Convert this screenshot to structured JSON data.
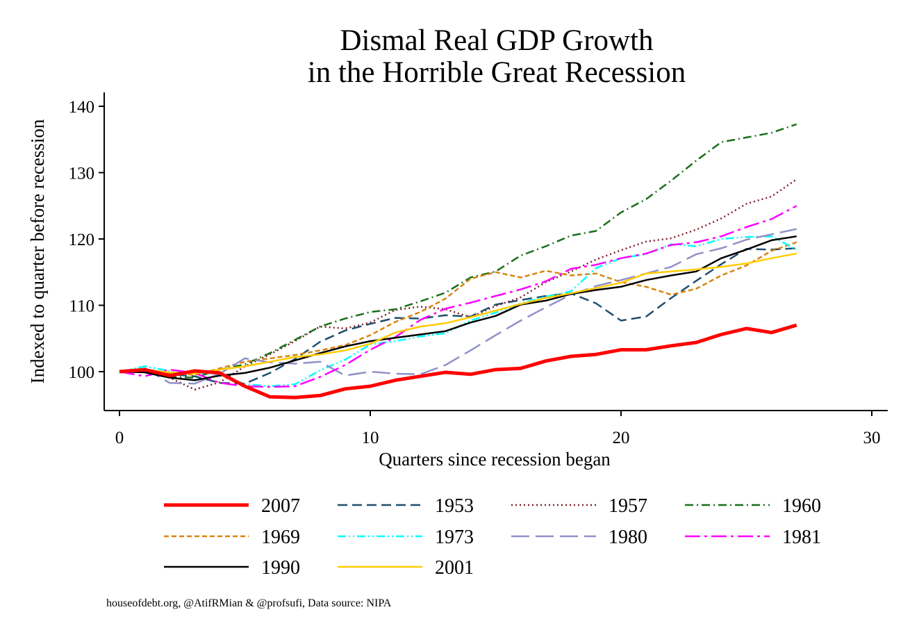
{
  "chart_data": {
    "type": "line",
    "title": "Dismal Real GDP Growth",
    "subtitle": "in the Horrible Great Recession",
    "xlabel": "Quarters since recession began",
    "ylabel": "Indexed to quarter before recession",
    "xlim": [
      0,
      30
    ],
    "ylim": [
      95,
      142
    ],
    "xticks": [
      0,
      10,
      20,
      30
    ],
    "yticks": [
      100,
      110,
      120,
      130,
      140
    ],
    "grid": false,
    "legend_placement": "bottom",
    "x": [
      0,
      1,
      2,
      3,
      4,
      5,
      6,
      7,
      8,
      9,
      10,
      11,
      12,
      13,
      14,
      15,
      16,
      17,
      18,
      19,
      20,
      21,
      22,
      23,
      24,
      25,
      26,
      27
    ],
    "series": [
      {
        "name": "2007",
        "color": "#ff0000",
        "dash": "solid",
        "width": 5,
        "values": [
          100,
          100.3,
          99.4,
          100.1,
          99.8,
          97.8,
          96.2,
          96.1,
          96.4,
          97.4,
          97.8,
          98.7,
          99.3,
          99.9,
          99.6,
          100.3,
          100.5,
          101.6,
          102.3,
          102.6,
          103.3,
          103.3,
          103.9,
          104.4,
          105.6,
          106.5,
          105.9,
          107
        ]
      },
      {
        "name": "1953",
        "color": "#1f4e6f",
        "dash": "14,7",
        "width": 2.5,
        "values": [
          100,
          100.4,
          99.6,
          99.3,
          98.3,
          98.2,
          99.8,
          101.9,
          104.5,
          106.2,
          107.2,
          108.1,
          108,
          108.5,
          108.3,
          110.1,
          110.8,
          111.4,
          111.8,
          110.3,
          107.7,
          108.3,
          111.1,
          113.7,
          116.2,
          118.5,
          118.4,
          118.6
        ]
      },
      {
        "name": "1957",
        "color": "#7a1f2b",
        "dash": "2,4",
        "width": 2.5,
        "values": [
          100,
          100.3,
          99.1,
          97.3,
          98.4,
          100.8,
          102.6,
          104.6,
          106.8,
          106.5,
          107.4,
          109.3,
          109.8,
          109.4,
          108.2,
          109.9,
          111.2,
          113.5,
          115.1,
          116.9,
          118.3,
          119.6,
          120.1,
          121.4,
          123.1,
          125.3,
          126.4,
          129
        ]
      },
      {
        "name": "1960",
        "color": "#196f19",
        "dash": "12,5,2,5",
        "width": 2.5,
        "values": [
          100,
          100.4,
          99.2,
          99.1,
          100.3,
          101.1,
          102.8,
          104.8,
          106.8,
          108,
          109,
          109.4,
          110.6,
          111.9,
          114.2,
          115.1,
          117.5,
          118.9,
          120.5,
          121.2,
          124,
          126,
          128.8,
          131.8,
          134.6,
          135.3,
          136,
          137.3
        ]
      },
      {
        "name": "1969",
        "color": "#d9830f",
        "dash": "7,4",
        "width": 2.5,
        "values": [
          100,
          100.3,
          99.8,
          99.5,
          100.5,
          101.5,
          102,
          102.5,
          103.2,
          104,
          105.5,
          107.5,
          109,
          111,
          114,
          115,
          114.2,
          115.2,
          114.5,
          114.8,
          113.5,
          112.8,
          111.6,
          112.5,
          114.5,
          116,
          118.2,
          119.5
        ]
      },
      {
        "name": "1973",
        "color": "#00ffff",
        "dash": "12,4,2,4,2,4",
        "width": 2.5,
        "values": [
          100,
          100.8,
          100.1,
          99.9,
          99.6,
          98.1,
          97.8,
          98.1,
          100.2,
          101.8,
          104.1,
          104.6,
          105.3,
          105.8,
          107.7,
          108.9,
          110.3,
          111.3,
          112.1,
          115.6,
          117.1,
          117.7,
          119.2,
          118.9,
          120,
          120.3,
          120.4,
          118.4
        ]
      },
      {
        "name": "1980",
        "color": "#9090c8",
        "dash": "26,9",
        "width": 2.5,
        "values": [
          100,
          100.5,
          98.3,
          98.2,
          99.7,
          102,
          101.4,
          101.2,
          101.5,
          99.4,
          100,
          99.7,
          99.6,
          101,
          103.2,
          105.5,
          107.7,
          109.7,
          111.6,
          112.9,
          113.8,
          114.8,
          115.8,
          117.7,
          118.6,
          119.9,
          120.7,
          121.5
        ]
      },
      {
        "name": "1981",
        "color": "#ff00ff",
        "dash": "22,6,4,6",
        "width": 2.5,
        "values": [
          100,
          99.3,
          100.3,
          99.8,
          98.3,
          97.8,
          97.7,
          97.8,
          99.2,
          101,
          103.3,
          105.2,
          107.8,
          109.5,
          110.4,
          111.4,
          112.4,
          113.6,
          115.5,
          116.1,
          117.1,
          117.8,
          119.1,
          119.5,
          120.4,
          121.8,
          123,
          125
        ]
      },
      {
        "name": "1990",
        "color": "#000000",
        "dash": "solid",
        "width": 2.5,
        "values": [
          100,
          99.9,
          99.1,
          98.7,
          99.4,
          99.8,
          100.6,
          101.7,
          102.8,
          103.8,
          104.6,
          105.1,
          105.6,
          106.1,
          107.4,
          108.4,
          110.1,
          110.7,
          111.7,
          112.3,
          112.8,
          113.8,
          114.5,
          115.1,
          117.1,
          118.4,
          119.8,
          120.4
        ]
      },
      {
        "name": "2001",
        "color": "#ffcc00",
        "dash": "solid",
        "width": 2.5,
        "values": [
          100,
          100.3,
          99.9,
          99.7,
          100.3,
          100.8,
          101.5,
          102.2,
          102.6,
          103.2,
          104.2,
          105.9,
          106.8,
          107.3,
          108.2,
          109.2,
          110.2,
          111.1,
          111.8,
          112.6,
          113.4,
          114.8,
          115.1,
          115.4,
          115.8,
          116.3,
          117.1,
          117.8
        ]
      }
    ],
    "legend_order": [
      "2007",
      "1953",
      "1957",
      "1960",
      "1969",
      "1973",
      "1980",
      "1981",
      "1990",
      "2001"
    ]
  },
  "source_note": "houseofdebt.org, @AtifRMian & @profsufi, Data source: NIPA"
}
